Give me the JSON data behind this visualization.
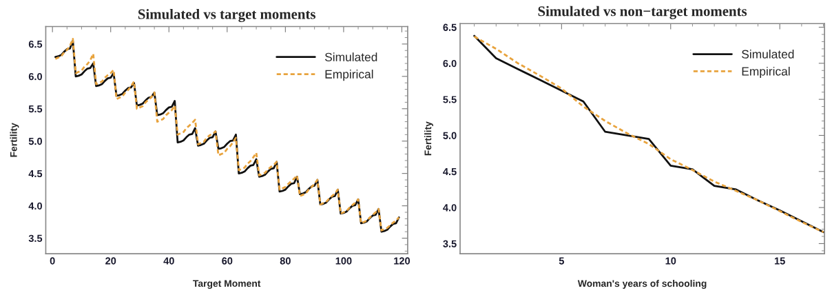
{
  "chart_data": [
    {
      "type": "line",
      "title": "Simulated vs target moments",
      "xlabel": "Target Moment",
      "ylabel": "Fertility",
      "x": [
        1,
        2,
        3,
        4,
        5,
        6,
        7,
        8,
        9,
        10,
        11,
        12,
        13,
        14,
        15,
        16,
        17,
        18,
        19,
        20,
        21,
        22,
        23,
        24,
        25,
        26,
        27,
        28,
        29,
        30,
        31,
        32,
        33,
        34,
        35,
        36,
        37,
        38,
        39,
        40,
        41,
        42,
        43,
        44,
        45,
        46,
        47,
        48,
        49,
        50,
        51,
        52,
        53,
        54,
        55,
        56,
        57,
        58,
        59,
        60,
        61,
        62,
        63,
        64,
        65,
        66,
        67,
        68,
        69,
        70,
        71,
        72,
        73,
        74,
        75,
        76,
        77,
        78,
        79,
        80,
        81,
        82,
        83,
        84,
        85,
        86,
        87,
        88,
        89,
        90,
        91,
        92,
        93,
        94,
        95,
        96,
        97,
        98,
        99,
        100,
        101,
        102,
        103,
        104,
        105,
        106,
        107,
        108,
        109,
        110,
        111,
        112,
        113,
        114,
        115,
        116,
        117,
        118,
        119
      ],
      "series": [
        {
          "name": "Simulated",
          "color": "#111111",
          "line_style": "solid",
          "values": [
            6.3,
            6.31,
            6.33,
            6.38,
            6.42,
            6.43,
            6.55,
            6.0,
            6.01,
            6.03,
            6.08,
            6.12,
            6.13,
            6.2,
            5.85,
            5.86,
            5.88,
            5.93,
            5.97,
            5.98,
            6.05,
            5.7,
            5.71,
            5.73,
            5.78,
            5.82,
            5.83,
            5.9,
            5.55,
            5.56,
            5.58,
            5.63,
            5.67,
            5.68,
            5.75,
            5.4,
            5.41,
            5.43,
            5.48,
            5.52,
            5.53,
            5.62,
            4.98,
            4.99,
            5.01,
            5.06,
            5.1,
            5.11,
            5.2,
            4.93,
            4.94,
            4.96,
            5.01,
            5.05,
            5.06,
            5.15,
            4.88,
            4.89,
            4.91,
            4.96,
            5.0,
            5.01,
            5.1,
            4.5,
            4.51,
            4.53,
            4.58,
            4.62,
            4.63,
            4.72,
            4.45,
            4.46,
            4.48,
            4.53,
            4.57,
            4.58,
            4.68,
            4.22,
            4.23,
            4.25,
            4.3,
            4.34,
            4.35,
            4.45,
            4.18,
            4.19,
            4.21,
            4.26,
            4.3,
            4.31,
            4.4,
            4.02,
            4.03,
            4.05,
            4.1,
            4.14,
            4.15,
            4.25,
            3.88,
            3.89,
            3.91,
            3.96,
            4.0,
            4.01,
            4.1,
            3.73,
            3.74,
            3.76,
            3.81,
            3.85,
            3.86,
            3.95,
            3.6,
            3.61,
            3.63,
            3.68,
            3.72,
            3.73,
            3.82
          ]
        },
        {
          "name": "Empirical",
          "color": "#e8a33d",
          "line_style": "dashed",
          "values": [
            6.27,
            6.29,
            6.31,
            6.37,
            6.41,
            6.47,
            6.58,
            6.05,
            6.07,
            6.09,
            6.15,
            6.19,
            6.25,
            6.35,
            5.88,
            5.9,
            5.92,
            5.98,
            6.02,
            6.05,
            6.1,
            5.65,
            5.67,
            5.69,
            5.75,
            5.79,
            5.85,
            5.92,
            5.5,
            5.52,
            5.54,
            5.6,
            5.64,
            5.68,
            5.75,
            5.3,
            5.32,
            5.34,
            5.4,
            5.44,
            5.48,
            5.55,
            5.1,
            5.12,
            5.14,
            5.2,
            5.24,
            5.28,
            5.33,
            4.95,
            4.97,
            4.99,
            5.05,
            5.09,
            5.11,
            5.15,
            4.78,
            4.8,
            4.82,
            4.88,
            4.92,
            4.98,
            5.05,
            4.55,
            4.57,
            4.59,
            4.65,
            4.69,
            4.75,
            4.82,
            4.47,
            4.49,
            4.51,
            4.56,
            4.6,
            4.63,
            4.68,
            4.25,
            4.27,
            4.29,
            4.34,
            4.38,
            4.42,
            4.47,
            4.15,
            4.17,
            4.19,
            4.25,
            4.29,
            4.34,
            4.4,
            4.02,
            4.04,
            4.06,
            4.11,
            4.15,
            4.19,
            4.25,
            3.88,
            3.9,
            3.92,
            3.97,
            4.01,
            4.05,
            4.1,
            3.73,
            3.75,
            3.77,
            3.82,
            3.86,
            3.9,
            3.95,
            3.62,
            3.64,
            3.66,
            3.7,
            3.74,
            3.77,
            3.82
          ]
        }
      ],
      "xlim": [
        -2.3,
        122
      ],
      "xticks": [
        0,
        20,
        40,
        60,
        80,
        100,
        120
      ],
      "ylim": [
        3.26,
        6.77
      ],
      "yticks": [
        3.5,
        {
          "value": 4,
          "label": "4.0"
        },
        4.5,
        {
          "value": 5,
          "label": "5.0"
        },
        5.5,
        {
          "value": 6,
          "label": "6.0"
        },
        6.5
      ],
      "grid": false,
      "legend": "top right"
    },
    {
      "type": "line",
      "title": "Simulated vs non−target moments",
      "xlabel": "Woman's years of schooling",
      "ylabel": "Fertility",
      "x": [
        1,
        2,
        3,
        4,
        5,
        6,
        7,
        8,
        9,
        10,
        11,
        12,
        13,
        14,
        15,
        16,
        17
      ],
      "series": [
        {
          "name": "Simulated",
          "color": "#111111",
          "line_style": "solid",
          "values": [
            6.38,
            6.07,
            5.92,
            5.77,
            5.62,
            5.47,
            5.05,
            5.0,
            4.95,
            4.58,
            4.53,
            4.3,
            4.25,
            4.1,
            3.96,
            3.81,
            3.66
          ]
        },
        {
          "name": "Empirical",
          "color": "#e8a33d",
          "line_style": "dashed",
          "values": [
            6.37,
            6.2,
            6.0,
            5.83,
            5.65,
            5.4,
            5.2,
            5.03,
            4.88,
            4.67,
            4.52,
            4.36,
            4.23,
            4.1,
            3.95,
            3.8,
            3.66
          ]
        }
      ],
      "xlim": [
        0.35,
        17.05
      ],
      "xticks": [
        5,
        10,
        15
      ],
      "ylim": [
        3.36,
        6.55
      ],
      "yticks": [
        3.5,
        {
          "value": 4,
          "label": "4.0"
        },
        4.5,
        {
          "value": 5,
          "label": "5.0"
        },
        5.5,
        {
          "value": 6,
          "label": "6.0"
        },
        6.5
      ],
      "grid": false,
      "legend": "top right"
    }
  ]
}
